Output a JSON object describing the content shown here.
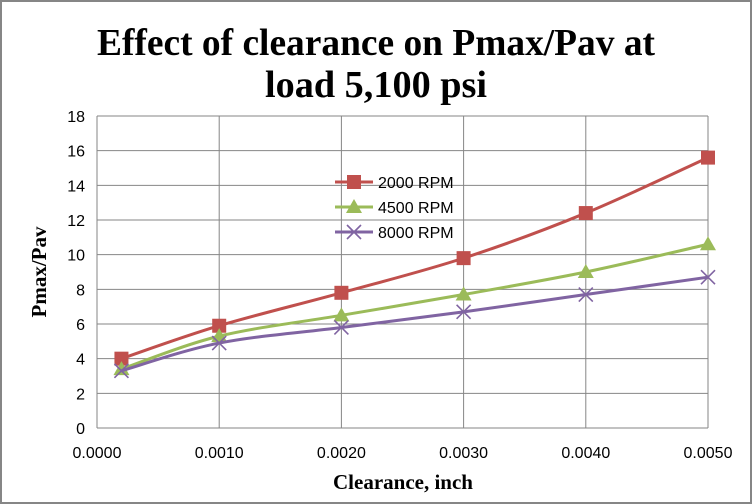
{
  "chart_data": {
    "type": "line",
    "title_lines": [
      "Effect of clearance on Pmax/Pav at",
      "load 5,100 psi"
    ],
    "xlabel": "Clearance, inch",
    "ylabel": "Pmax/Pav",
    "xlim": [
      0,
      0.005
    ],
    "ylim": [
      0,
      18
    ],
    "x_ticks": [
      "0.0000",
      "0.0010",
      "0.0020",
      "0.0030",
      "0.0040",
      "0.0050"
    ],
    "y_ticks": [
      "0",
      "2",
      "4",
      "6",
      "8",
      "10",
      "12",
      "14",
      "16",
      "18"
    ],
    "grid": true,
    "legend_position": "center-top",
    "x": [
      0.0002,
      0.001,
      0.002,
      0.003,
      0.004,
      0.005
    ],
    "series": [
      {
        "name": "2000 RPM",
        "color": "#C0504D",
        "marker": "square",
        "values": [
          4.0,
          5.9,
          7.8,
          9.8,
          12.4,
          15.6
        ]
      },
      {
        "name": "4500 RPM",
        "color": "#9BBB59",
        "marker": "triangle",
        "values": [
          3.4,
          5.3,
          6.5,
          7.7,
          9.0,
          10.6
        ]
      },
      {
        "name": "8000 RPM",
        "color": "#8064A2",
        "marker": "x",
        "values": [
          3.3,
          4.9,
          5.8,
          6.7,
          7.7,
          8.7
        ]
      }
    ]
  }
}
